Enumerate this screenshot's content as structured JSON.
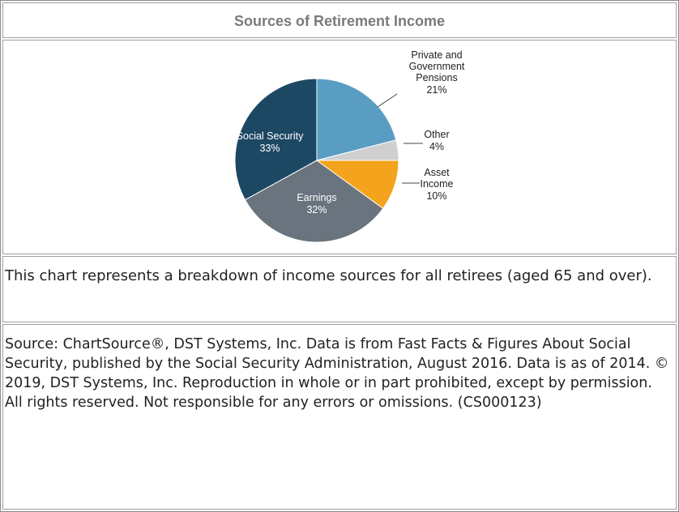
{
  "chart_data": {
    "type": "pie",
    "title": "Sources of Retirement Income",
    "categories": [
      "Private and Government Pensions",
      "Other",
      "Asset Income",
      "Earnings",
      "Social Security"
    ],
    "values": [
      21,
      4,
      10,
      32,
      33
    ],
    "value_labels": [
      "21%",
      "4%",
      "10%",
      "32%",
      "33%"
    ],
    "colors": [
      "#5a9dc3",
      "#cfcfcf",
      "#f4a31c",
      "#69747e",
      "#1d4864"
    ]
  },
  "caption": "This chart represents a breakdown of income sources for all retirees (aged 65 and over).",
  "source": "Source: ChartSource®, DST Systems, Inc. Data is from Fast Facts & Figures About Social Security, published by the Social Security Administration, August 2016. Data is as of 2014. © 2019, DST Systems, Inc. Reproduction in whole or in part prohibited, except by permission. All rights reserved. Not responsible for any errors or omissions. (CS000123)"
}
